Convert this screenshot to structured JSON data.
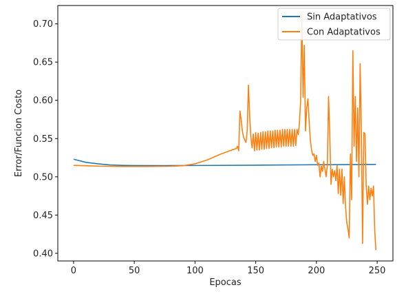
{
  "chart_data": {
    "type": "line",
    "title": "",
    "xlabel": "Epocas",
    "ylabel": "Error/Funcion Costo",
    "xlim": [
      -13,
      263
    ],
    "ylim": [
      0.39,
      0.724
    ],
    "xticks": [
      0,
      50,
      100,
      150,
      200,
      250
    ],
    "yticks": [
      0.4,
      0.45,
      0.5,
      0.55,
      0.6,
      0.65,
      0.7
    ],
    "grid": false,
    "legend": {
      "placement": "top-right"
    },
    "series": [
      {
        "name": "Sin Adaptativos",
        "color": "#1f77b4",
        "points": [
          [
            0,
            0.523
          ],
          [
            5,
            0.521
          ],
          [
            10,
            0.519
          ],
          [
            20,
            0.517
          ],
          [
            30,
            0.5155
          ],
          [
            40,
            0.515
          ],
          [
            50,
            0.5148
          ],
          [
            75,
            0.5147
          ],
          [
            100,
            0.5148
          ],
          [
            150,
            0.5152
          ],
          [
            200,
            0.5158
          ],
          [
            225,
            0.516
          ],
          [
            249,
            0.5162
          ]
        ]
      },
      {
        "name": "Con Adaptativos",
        "color": "#ff7f0e",
        "points": [
          [
            0,
            0.515
          ],
          [
            10,
            0.5145
          ],
          [
            25,
            0.5138
          ],
          [
            40,
            0.5135
          ],
          [
            60,
            0.5135
          ],
          [
            80,
            0.5138
          ],
          [
            90,
            0.5145
          ],
          [
            100,
            0.517
          ],
          [
            110,
            0.522
          ],
          [
            120,
            0.529
          ],
          [
            130,
            0.535
          ],
          [
            134,
            0.537
          ],
          [
            135,
            0.54
          ],
          [
            136,
            0.534
          ],
          [
            137,
            0.586
          ],
          [
            138,
            0.575
          ],
          [
            139,
            0.56
          ],
          [
            140,
            0.552
          ],
          [
            141,
            0.548
          ],
          [
            142,
            0.545
          ],
          [
            143,
            0.56
          ],
          [
            144,
            0.62
          ],
          [
            145,
            0.58
          ],
          [
            146,
            0.552
          ],
          [
            147,
            0.538
          ],
          [
            148,
            0.556
          ],
          [
            149,
            0.534
          ],
          [
            150,
            0.558
          ],
          [
            151,
            0.535
          ],
          [
            152,
            0.557
          ],
          [
            153,
            0.535
          ],
          [
            154,
            0.558
          ],
          [
            155,
            0.536
          ],
          [
            156,
            0.559
          ],
          [
            157,
            0.536
          ],
          [
            158,
            0.559
          ],
          [
            159,
            0.537
          ],
          [
            160,
            0.56
          ],
          [
            161,
            0.537
          ],
          [
            162,
            0.56
          ],
          [
            163,
            0.538
          ],
          [
            164,
            0.56
          ],
          [
            165,
            0.538
          ],
          [
            166,
            0.561
          ],
          [
            167,
            0.539
          ],
          [
            168,
            0.561
          ],
          [
            169,
            0.539
          ],
          [
            170,
            0.561
          ],
          [
            171,
            0.539
          ],
          [
            172,
            0.562
          ],
          [
            173,
            0.54
          ],
          [
            174,
            0.562
          ],
          [
            175,
            0.54
          ],
          [
            176,
            0.562
          ],
          [
            177,
            0.54
          ],
          [
            178,
            0.562
          ],
          [
            179,
            0.54
          ],
          [
            180,
            0.562
          ],
          [
            181,
            0.54
          ],
          [
            182,
            0.562
          ],
          [
            183,
            0.541
          ],
          [
            184,
            0.562
          ],
          [
            185,
            0.555
          ],
          [
            186,
            0.57
          ],
          [
            187,
            0.6
          ],
          [
            188,
            0.712
          ],
          [
            189,
            0.604
          ],
          [
            190,
            0.672
          ],
          [
            191,
            0.56
          ],
          [
            192,
            0.59
          ],
          [
            193,
            0.602
          ],
          [
            194,
            0.572
          ],
          [
            195,
            0.548
          ],
          [
            196,
            0.535
          ],
          [
            197,
            0.528
          ],
          [
            198,
            0.53
          ],
          [
            199,
            0.52
          ],
          [
            200,
            0.528
          ],
          [
            201,
            0.515
          ],
          [
            202,
            0.518
          ],
          [
            203,
            0.5
          ],
          [
            204,
            0.514
          ],
          [
            205,
            0.507
          ],
          [
            206,
            0.52
          ],
          [
            207,
            0.51
          ],
          [
            208,
            0.5
          ],
          [
            209,
            0.515
          ],
          [
            210,
            0.605
          ],
          [
            211,
            0.555
          ],
          [
            212,
            0.49
          ],
          [
            213,
            0.51
          ],
          [
            214,
            0.5
          ],
          [
            215,
            0.508
          ],
          [
            216,
            0.495
          ],
          [
            217,
            0.515
          ],
          [
            218,
            0.478
          ],
          [
            219,
            0.51
          ],
          [
            220,
            0.476
          ],
          [
            221,
            0.51
          ],
          [
            222,
            0.465
          ],
          [
            223,
            0.5
          ],
          [
            224,
            0.46
          ],
          [
            225,
            0.44
          ],
          [
            226,
            0.432
          ],
          [
            227,
            0.42
          ],
          [
            228,
            0.53
          ],
          [
            229,
            0.47
          ],
          [
            230,
            0.665
          ],
          [
            231,
            0.54
          ],
          [
            232,
            0.605
          ],
          [
            233,
            0.52
          ],
          [
            234,
            0.59
          ],
          [
            235,
            0.5
          ],
          [
            236,
            0.648
          ],
          [
            237,
            0.56
          ],
          [
            238,
            0.413
          ],
          [
            239,
            0.558
          ],
          [
            240,
            0.556
          ],
          [
            241,
            0.488
          ],
          [
            242,
            0.464
          ],
          [
            243,
            0.488
          ],
          [
            244,
            0.47
          ],
          [
            245,
            0.485
          ],
          [
            246,
            0.475
          ],
          [
            247,
            0.488
          ],
          [
            248,
            0.43
          ],
          [
            249,
            0.404
          ]
        ]
      }
    ]
  }
}
